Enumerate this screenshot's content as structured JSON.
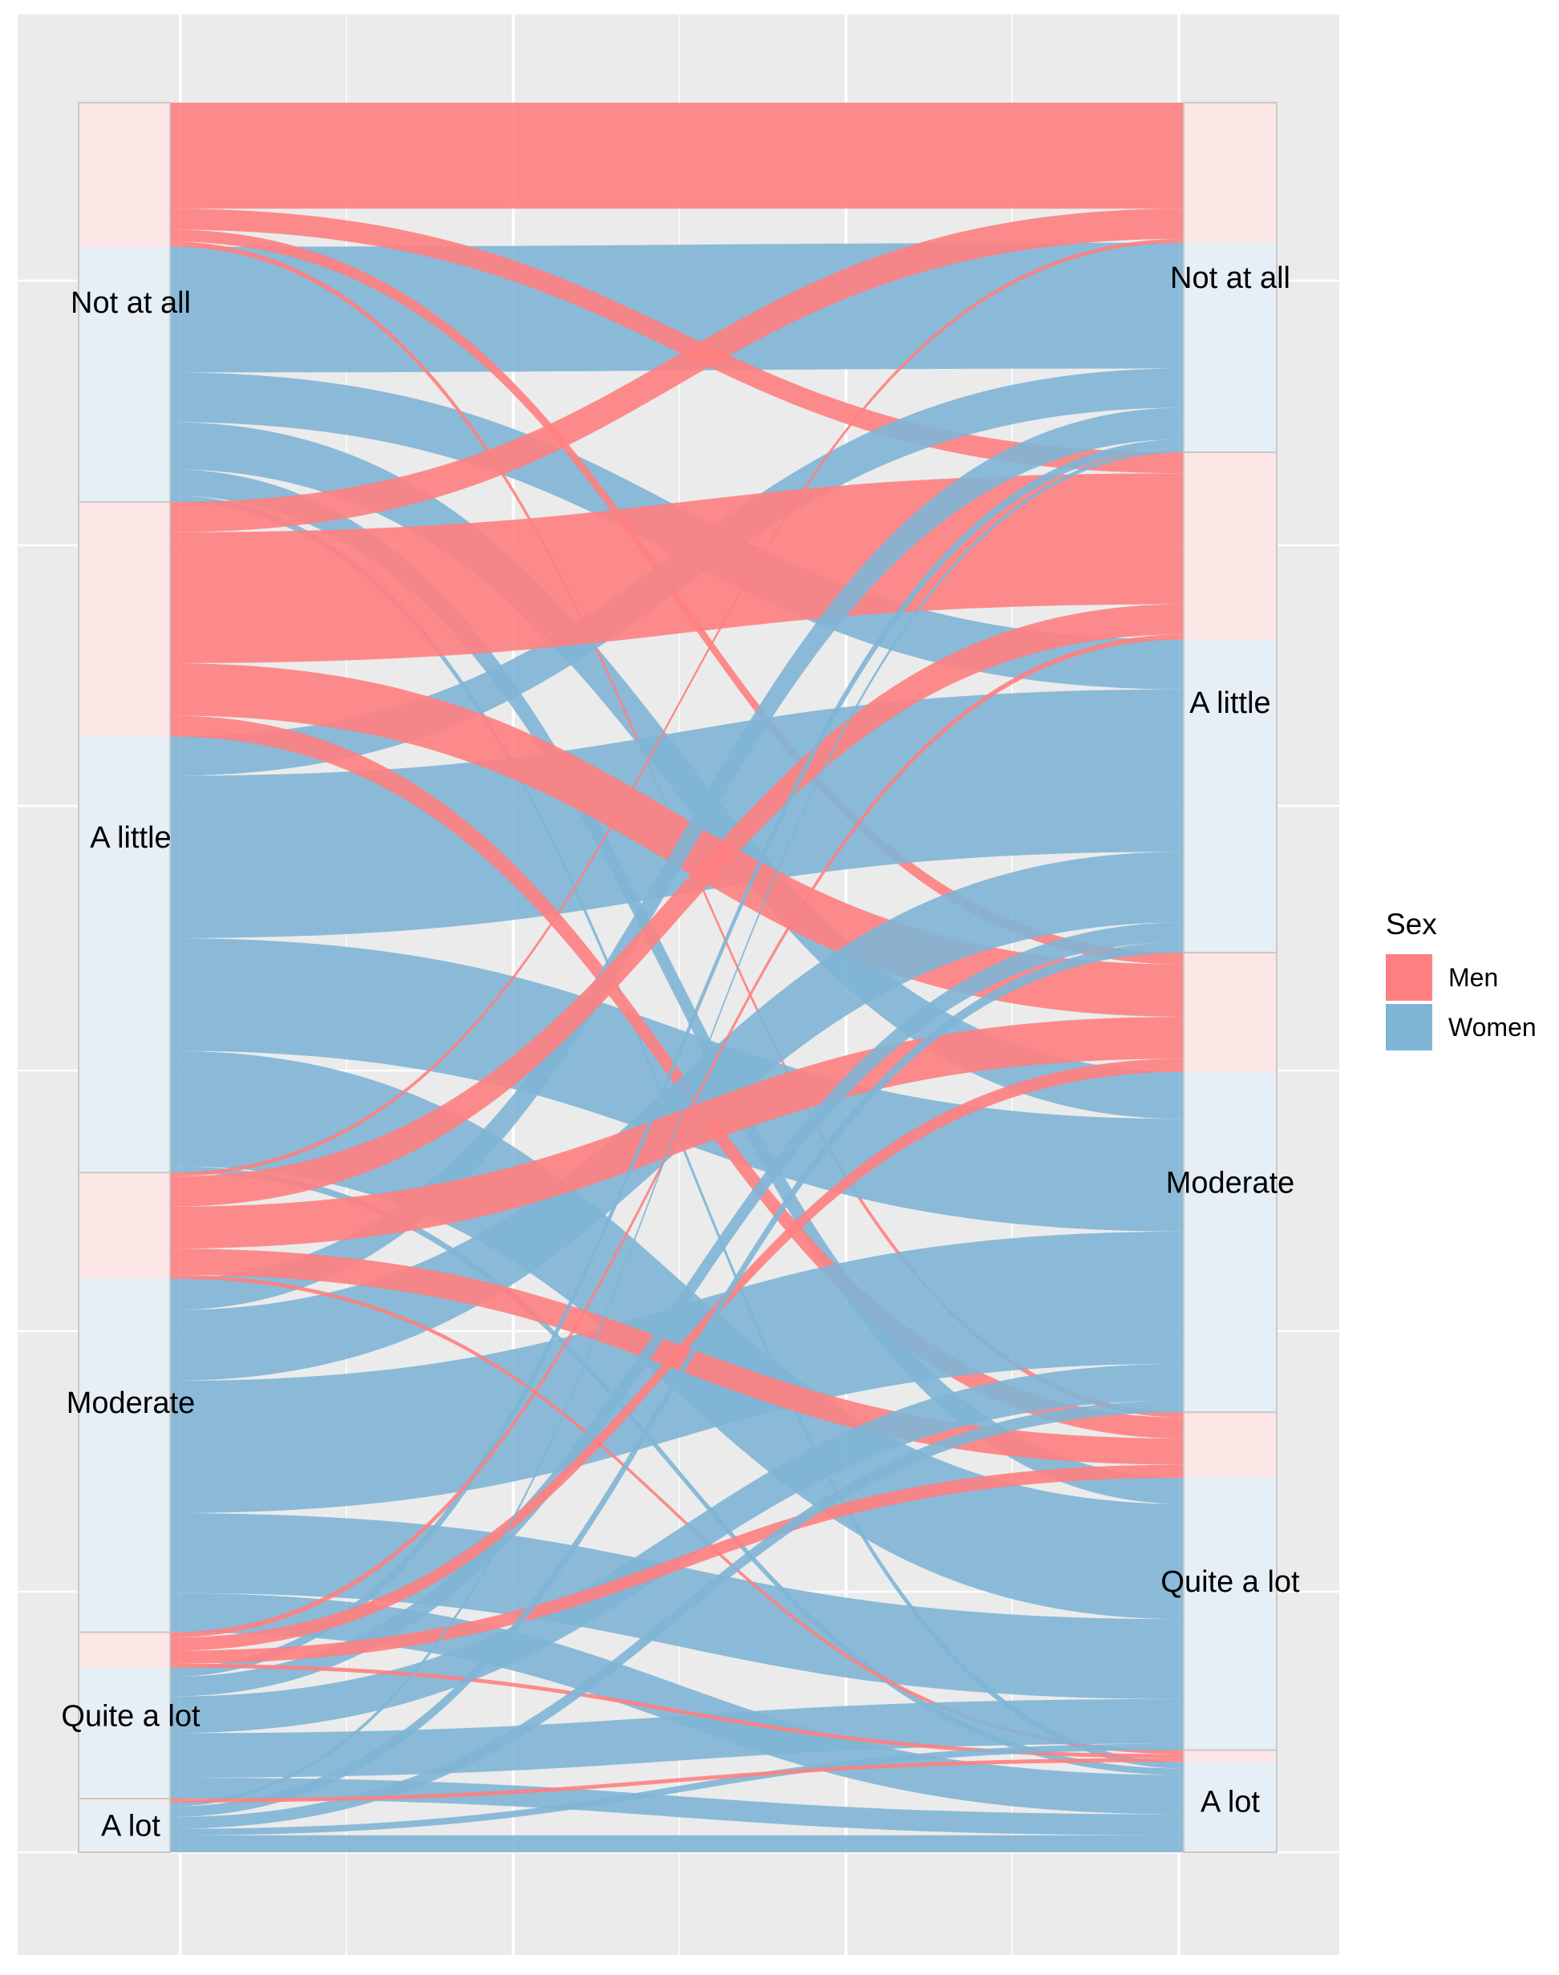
{
  "chart_data": {
    "type": "alluvial",
    "title": "",
    "xlabel": "",
    "ylabel": "",
    "grid": true,
    "legend_position": "right",
    "legend": {
      "title": "Sex",
      "entries": [
        {
          "name": "Men",
          "color": "#F8766D"
        },
        {
          "name": "Women",
          "color": "#5FA3CC"
        }
      ]
    },
    "colors": {
      "Men": "#FF8080",
      "Women": "#80B5D6",
      "panel": "#EBEBEB",
      "grid": "#FFFFFF",
      "stratum_men": "#FDE6E6",
      "stratum_women": "#E6EEF6",
      "stratum_border": "#C8C8C8"
    },
    "axes": [
      "before",
      "after"
    ],
    "categories": [
      "Not at all",
      "A little",
      "Moderate",
      "Quite a lot",
      "A lot"
    ],
    "left_labels": [
      "Not at all",
      "A little",
      "Moderate",
      "Quite a lot",
      "A lot"
    ],
    "right_labels": [
      "Not at all",
      "A little",
      "Moderate",
      "Quite a lot",
      "A lot"
    ],
    "flows": [
      {
        "from": "Not at all",
        "to": "Not at all",
        "sex": "Men",
        "value": 8.1
      },
      {
        "from": "Not at all",
        "to": "Not at all",
        "sex": "Women",
        "value": 9.6
      },
      {
        "from": "Not at all",
        "to": "A little",
        "sex": "Men",
        "value": 1.6
      },
      {
        "from": "Not at all",
        "to": "A little",
        "sex": "Women",
        "value": 3.8
      },
      {
        "from": "Not at all",
        "to": "Moderate",
        "sex": "Men",
        "value": 0.9
      },
      {
        "from": "Not at all",
        "to": "Moderate",
        "sex": "Women",
        "value": 3.6
      },
      {
        "from": "Not at all",
        "to": "Quite a lot",
        "sex": "Men",
        "value": 0.4
      },
      {
        "from": "Not at all",
        "to": "Quite a lot",
        "sex": "Women",
        "value": 2.0
      },
      {
        "from": "Not at all",
        "to": "A lot",
        "sex": "Women",
        "value": 0.5
      },
      {
        "from": "A little",
        "to": "Not at all",
        "sex": "Men",
        "value": 2.3
      },
      {
        "from": "A little",
        "to": "Not at all",
        "sex": "Women",
        "value": 3.0
      },
      {
        "from": "A little",
        "to": "A little",
        "sex": "Men",
        "value": 10.0
      },
      {
        "from": "A little",
        "to": "A little",
        "sex": "Women",
        "value": 12.4
      },
      {
        "from": "A little",
        "to": "Moderate",
        "sex": "Men",
        "value": 4.0
      },
      {
        "from": "A little",
        "to": "Moderate",
        "sex": "Women",
        "value": 8.6
      },
      {
        "from": "A little",
        "to": "Quite a lot",
        "sex": "Men",
        "value": 1.6
      },
      {
        "from": "A little",
        "to": "Quite a lot",
        "sex": "Women",
        "value": 8.8
      },
      {
        "from": "A little",
        "to": "A lot",
        "sex": "Women",
        "value": 0.5
      },
      {
        "from": "Moderate",
        "to": "Not at all",
        "sex": "Men",
        "value": 0.3
      },
      {
        "from": "Moderate",
        "to": "Not at all",
        "sex": "Women",
        "value": 2.4
      },
      {
        "from": "Moderate",
        "to": "A little",
        "sex": "Men",
        "value": 2.3
      },
      {
        "from": "Moderate",
        "to": "A little",
        "sex": "Women",
        "value": 5.4
      },
      {
        "from": "Moderate",
        "to": "Moderate",
        "sex": "Men",
        "value": 3.2
      },
      {
        "from": "Moderate",
        "to": "Moderate",
        "sex": "Women",
        "value": 10.1
      },
      {
        "from": "Moderate",
        "to": "Quite a lot",
        "sex": "Men",
        "value": 2.0
      },
      {
        "from": "Moderate",
        "to": "Quite a lot",
        "sex": "Women",
        "value": 6.1
      },
      {
        "from": "Moderate",
        "to": "A lot",
        "sex": "Men",
        "value": 0.3
      },
      {
        "from": "Moderate",
        "to": "A lot",
        "sex": "Women",
        "value": 3.0
      },
      {
        "from": "Quite a lot",
        "to": "Not at all",
        "sex": "Women",
        "value": 0.7
      },
      {
        "from": "Quite a lot",
        "to": "A little",
        "sex": "Men",
        "value": 0.4
      },
      {
        "from": "Quite a lot",
        "to": "A little",
        "sex": "Women",
        "value": 1.5
      },
      {
        "from": "Quite a lot",
        "to": "Moderate",
        "sex": "Men",
        "value": 1.0
      },
      {
        "from": "Quite a lot",
        "to": "Moderate",
        "sex": "Women",
        "value": 2.8
      },
      {
        "from": "Quite a lot",
        "to": "Quite a lot",
        "sex": "Men",
        "value": 1.0
      },
      {
        "from": "Quite a lot",
        "to": "Quite a lot",
        "sex": "Women",
        "value": 3.4
      },
      {
        "from": "Quite a lot",
        "to": "A lot",
        "sex": "Men",
        "value": 0.3
      },
      {
        "from": "Quite a lot",
        "to": "A lot",
        "sex": "Women",
        "value": 1.6
      },
      {
        "from": "A lot",
        "to": "Not at all",
        "sex": "Women",
        "value": 0.3
      },
      {
        "from": "A lot",
        "to": "A little",
        "sex": "Women",
        "value": 0.8
      },
      {
        "from": "A lot",
        "to": "Moderate",
        "sex": "Women",
        "value": 0.9
      },
      {
        "from": "A lot",
        "to": "Quite a lot",
        "sex": "Women",
        "value": 0.5
      },
      {
        "from": "A lot",
        "to": "A lot",
        "sex": "Men",
        "value": 0.3
      },
      {
        "from": "A lot",
        "to": "A lot",
        "sex": "Women",
        "value": 1.3
      }
    ]
  }
}
